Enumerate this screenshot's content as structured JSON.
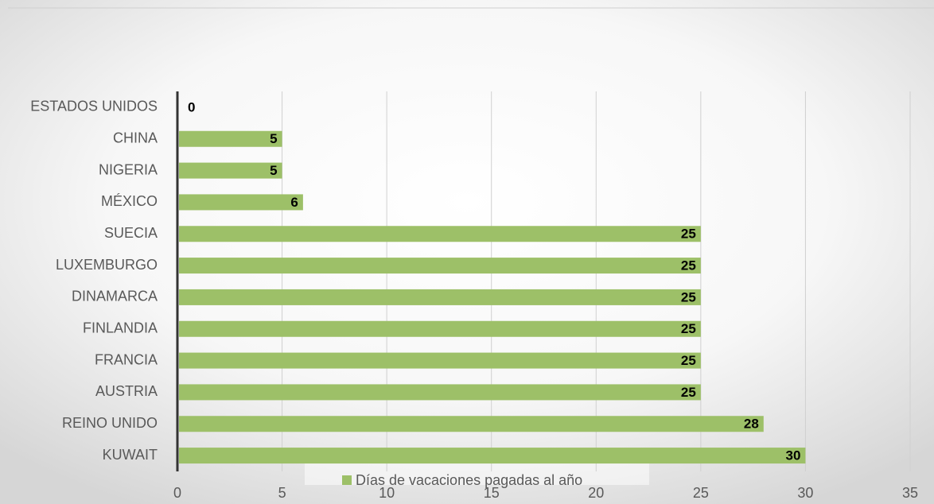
{
  "chart_data": {
    "type": "barh",
    "categories": [
      "ESTADOS UNIDOS",
      "CHINA",
      "NIGERIA",
      "MÉXICO",
      "SUECIA",
      "LUXEMBURGO",
      "DINAMARCA",
      "FINLANDIA",
      "FRANCIA",
      "AUSTRIA",
      "REINO UNIDO",
      "KUWAIT"
    ],
    "series": [
      {
        "name": "Días de vacaciones pagadas al año",
        "color": "#9dc068",
        "values": [
          0,
          5,
          5,
          6,
          25,
          25,
          25,
          25,
          25,
          25,
          28,
          30
        ]
      }
    ],
    "xlim": [
      0,
      35
    ],
    "xticks": [
      0,
      5,
      10,
      15,
      20,
      25,
      30,
      35
    ],
    "grid": true,
    "legend": "bottom"
  }
}
